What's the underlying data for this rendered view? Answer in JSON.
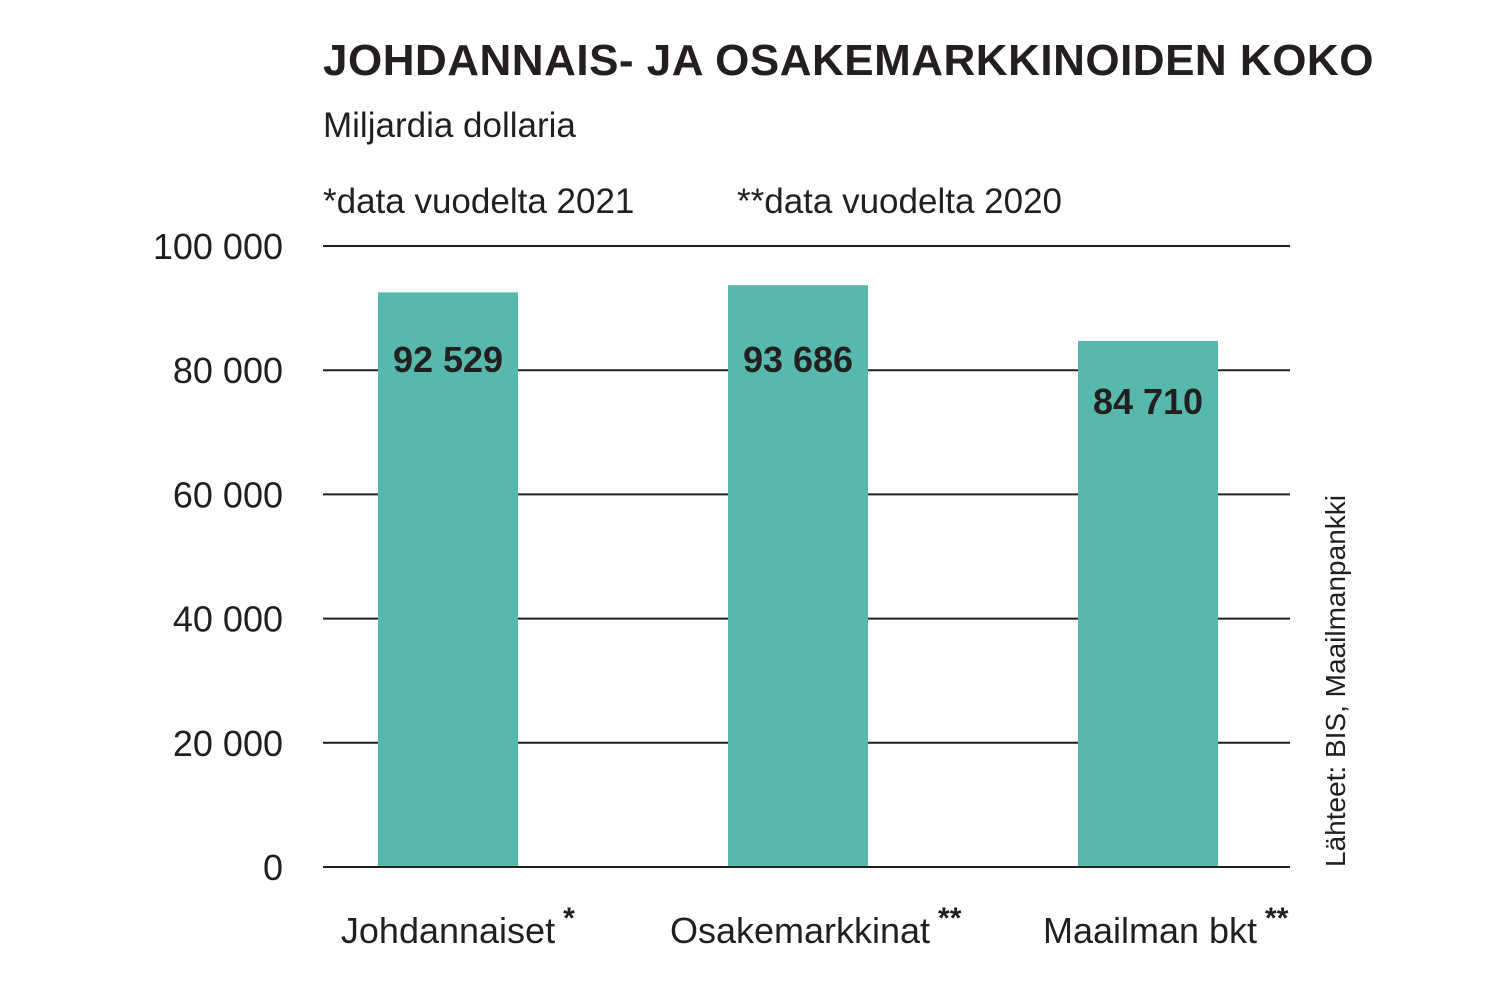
{
  "chart_data": {
    "type": "bar",
    "title": "JOHDANNAIS- JA OSAKEMARKKINOIDEN KOKO",
    "subtitle": "Miljardia dollaria",
    "notes": [
      "*data vuodelta 2021",
      "**data vuodelta 2020"
    ],
    "categories": [
      "Johdannaiset",
      "Osakemarkkinat",
      "Maailman bkt"
    ],
    "category_marks": [
      "*",
      "**",
      "**"
    ],
    "values": [
      92529,
      93686,
      84710
    ],
    "value_labels": [
      "92 529",
      "93 686",
      "84 710"
    ],
    "ylim": [
      0,
      100000
    ],
    "y_ticks": [
      0,
      20000,
      40000,
      60000,
      80000,
      100000
    ],
    "y_tick_labels": [
      "0",
      "20 000",
      "40 000",
      "60 000",
      "80 000",
      "100 000"
    ],
    "grid": true,
    "bar_color": "#56b9ac",
    "grid_color": "#231f20",
    "source": "Lähteet: BIS, Maailmanpankki"
  }
}
